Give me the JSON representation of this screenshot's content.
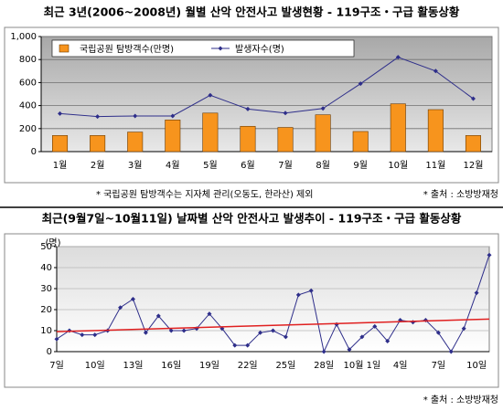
{
  "chart_data": [
    {
      "type": "bar",
      "title": "최근 3년(2006~2008년) 월별 산악 안전사고 발생현황 - 119구조・구급 활동상황",
      "categories": [
        "1월",
        "2월",
        "3월",
        "4월",
        "5월",
        "6월",
        "7월",
        "8월",
        "9월",
        "10월",
        "11월",
        "12월"
      ],
      "series": [
        {
          "name": "국립공원 탐방객수(만명)",
          "kind": "bar",
          "color": "#f7941d",
          "values": [
            140,
            140,
            170,
            275,
            335,
            220,
            210,
            320,
            175,
            415,
            365,
            140
          ]
        },
        {
          "name": "발생자수(명)",
          "kind": "line",
          "color": "#2e2e8a",
          "values": [
            330,
            305,
            310,
            310,
            490,
            370,
            335,
            375,
            590,
            820,
            700,
            460
          ]
        }
      ],
      "ylim": [
        0,
        1000
      ],
      "yticks": [
        0,
        200,
        400,
        600,
        800,
        {
          "value": 1000,
          "label": "1,000"
        }
      ],
      "grid": true,
      "legend": "top",
      "notes": [
        "* 국립공원 탐방객수는 지자체 관리(오동도, 한라산) 제외",
        "* 출처 : 소방방재청"
      ]
    },
    {
      "type": "line",
      "title": "최근(9월7일~10월11일) 날짜별 산악 안전사고 발생추이 - 119구조・구급 활동상황",
      "y_label": "(명)",
      "categories": [
        "7일",
        null,
        null,
        "10일",
        null,
        null,
        "13일",
        null,
        null,
        "16일",
        null,
        null,
        "19일",
        null,
        null,
        "22일",
        null,
        null,
        "25일",
        null,
        null,
        "28일",
        null,
        null,
        "10월 1일",
        null,
        null,
        "4일",
        null,
        null,
        "7일",
        null,
        null,
        "10일",
        null
      ],
      "series": [
        {
          "color": "#2e2e8a",
          "values": [
            6,
            10,
            8,
            8,
            10,
            21,
            25,
            9,
            17,
            10,
            10,
            11,
            18,
            11,
            3,
            3,
            9,
            10,
            7,
            27,
            29,
            0,
            13,
            1,
            7,
            12,
            5,
            15,
            14,
            15,
            9,
            0,
            11,
            28,
            46
          ]
        }
      ],
      "trend": {
        "color": "#e02020",
        "values": [
          9.5,
          15.5
        ]
      },
      "ylim": [
        0,
        50
      ],
      "yticks": [
        0,
        10,
        20,
        30,
        40,
        50
      ],
      "grid": true,
      "notes": [
        "* 출처 : 소방방재청"
      ]
    }
  ]
}
